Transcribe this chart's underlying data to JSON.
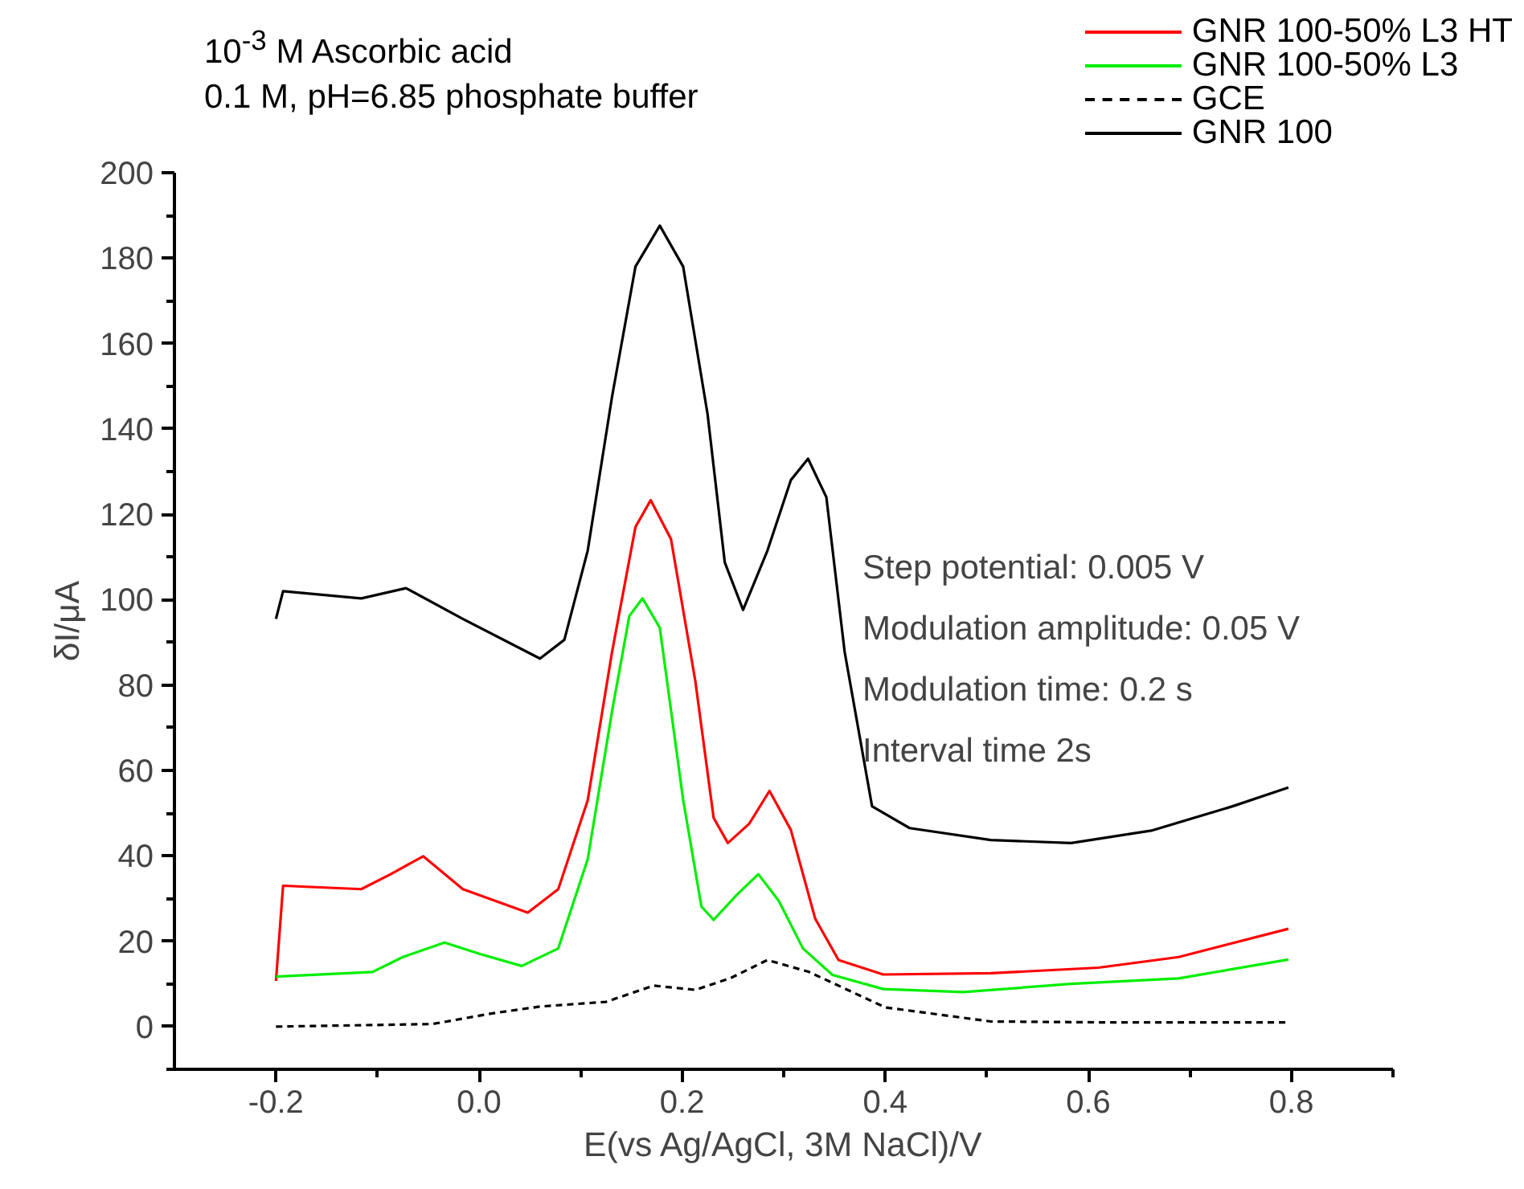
{
  "chart_data": {
    "type": "line",
    "title": "10$^{-3}$ M Ascorbic acid",
    "subtitle": "0.1 M, pH=6.85 phosphate buffer",
    "xlabel": "E(vs Ag/AgCl, 3M NaCl)/V",
    "ylabel": "δI/μA",
    "xlim": [
      -0.3,
      0.9
    ],
    "ylim": [
      -10,
      200
    ],
    "xticks": [
      {
        "value": -0.2,
        "label": "-0.2"
      },
      {
        "value": 0,
        "label": "0.0"
      },
      0.2,
      0.4,
      0.6,
      0.8
    ],
    "yticks": [
      0,
      20,
      40,
      60,
      80,
      100,
      120,
      140,
      160,
      180,
      200
    ],
    "grid": false,
    "legend": "top right",
    "annotations": [
      "Step potential: 0.005 V",
      "Modulation amplitude: 0.05 V",
      "Modulation time: 0.2 s",
      "Interval time 2s"
    ],
    "series": [
      {
        "name": "GNR 100-50% L3 HT",
        "color": "#ff0000",
        "line_style": "solid",
        "x": [
          -0.2,
          -0.193,
          -0.116,
          -0.087,
          -0.055,
          -0.016,
          0.048,
          0.078,
          0.107,
          0.131,
          0.154,
          0.169,
          0.189,
          0.213,
          0.231,
          0.245,
          0.266,
          0.286,
          0.307,
          0.331,
          0.354,
          0.398,
          0.504,
          0.61,
          0.689,
          0.797
        ],
        "values": [
          10.7,
          33,
          32.2,
          35.7,
          39.9,
          32.2,
          26.7,
          32.2,
          53,
          87.8,
          117,
          123.3,
          114.2,
          80.9,
          48.9,
          43,
          47.5,
          55.2,
          46.1,
          25.3,
          15.6,
          12.2,
          12.5,
          13.8,
          16.3,
          22.9
        ]
      },
      {
        "name": "GNR 100-50% L3",
        "color": "#00ee00",
        "line_style": "solid",
        "x": [
          -0.2,
          -0.105,
          -0.075,
          -0.034,
          0.001,
          0.042,
          0.078,
          0.107,
          0.131,
          0.148,
          0.161,
          0.178,
          0.201,
          0.219,
          0.231,
          0.254,
          0.275,
          0.295,
          0.319,
          0.348,
          0.398,
          0.477,
          0.583,
          0.689,
          0.797
        ],
        "values": [
          11.7,
          12.8,
          16.3,
          19.7,
          17,
          14.2,
          18.3,
          39.2,
          73.9,
          96.2,
          100.3,
          93.4,
          53.1,
          28.1,
          25,
          30.9,
          35.7,
          29.5,
          18.3,
          12.1,
          8.8,
          8.1,
          10,
          11.3,
          15.7
        ]
      },
      {
        "name": "GCE",
        "color": "#000000",
        "line_style": "dashed",
        "x": [
          -0.2,
          -0.046,
          0.013,
          0.06,
          0.125,
          0.172,
          0.213,
          0.248,
          0.284,
          0.325,
          0.4,
          0.504,
          0.61,
          0.797
        ],
        "values": [
          0,
          0.6,
          3.1,
          4.7,
          5.8,
          9.6,
          8.6,
          11.4,
          15.6,
          12.8,
          4.5,
          1.2,
          1,
          1
        ]
      },
      {
        "name": "GNR 100",
        "color": "#000000",
        "line_style": "solid",
        "x": [
          -0.2,
          -0.193,
          -0.116,
          -0.072,
          -0.016,
          0.06,
          0.084,
          0.107,
          0.131,
          0.154,
          0.178,
          0.201,
          0.225,
          0.242,
          0.26,
          0.284,
          0.307,
          0.324,
          0.342,
          0.36,
          0.387,
          0.424,
          0.504,
          0.583,
          0.662,
          0.742,
          0.797
        ],
        "values": [
          95.5,
          102,
          100.3,
          102.7,
          95.5,
          86.2,
          90.6,
          111.5,
          147.6,
          178,
          187.6,
          178,
          143.5,
          108.7,
          97.6,
          111.5,
          128,
          133,
          124,
          87.8,
          51.6,
          46.5,
          43.7,
          43,
          45.9,
          51.6,
          56
        ]
      }
    ]
  }
}
